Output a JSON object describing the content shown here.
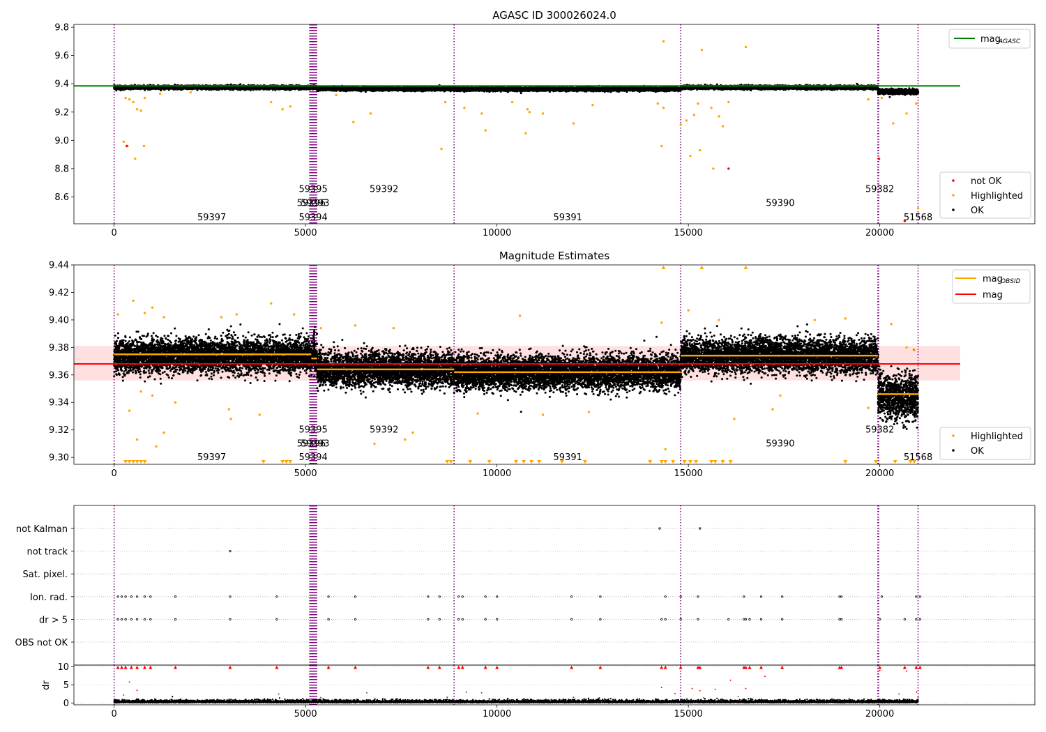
{
  "chart_data": [
    {
      "type": "scatter",
      "title": "AGASC ID 300026024.0",
      "xlim": [
        -1050,
        24050
      ],
      "ylim": [
        8.41,
        9.82
      ],
      "x_ticks": [
        0,
        5000,
        10000,
        15000,
        20000
      ],
      "y_ticks": [
        8.6,
        8.8,
        9.0,
        9.2,
        9.4,
        9.6,
        9.8
      ],
      "y_tick_labels": [
        "8.6",
        "8.8",
        "9.0",
        "9.2",
        "9.4",
        "9.6",
        "9.8"
      ],
      "legend_lines": [
        {
          "label_main": "mag",
          "label_sub": "AGASC",
          "color": "#008000"
        }
      ],
      "legend_points": [
        {
          "label": "not OK",
          "color": "#ff0000"
        },
        {
          "label": "Highlighted",
          "color": "#ffa500"
        },
        {
          "label": "OK",
          "color": "#000000"
        }
      ],
      "hlines": [
        {
          "name": "mag_AGASC",
          "y": 9.385,
          "x_range": [
            -1050,
            22100
          ],
          "color": "#008000"
        }
      ],
      "obsid_labels": [
        {
          "text": "59397",
          "x": 2550,
          "y": 8.46
        },
        {
          "text": "59395",
          "x": 5200,
          "y": 8.66
        },
        {
          "text": "59396",
          "x": 5150,
          "y": 8.56
        },
        {
          "text": "59393",
          "x": 5250,
          "y": 8.56
        },
        {
          "text": "59394",
          "x": 5200,
          "y": 8.46
        },
        {
          "text": "59392",
          "x": 7050,
          "y": 8.66
        },
        {
          "text": "59391",
          "x": 11850,
          "y": 8.46
        },
        {
          "text": "59390",
          "x": 17400,
          "y": 8.56
        },
        {
          "text": "59382",
          "x": 20000,
          "y": 8.66
        },
        {
          "text": "51568",
          "x": 21000,
          "y": 8.46
        }
      ],
      "segments": [
        {
          "x": [
            0,
            5150
          ],
          "center": 9.374,
          "sigma": 0.006
        },
        {
          "x": [
            5150,
            5300
          ],
          "center": 9.374,
          "sigma": 0.007
        },
        {
          "x": [
            5300,
            8880
          ],
          "center": 9.364,
          "sigma": 0.006
        },
        {
          "x": [
            8880,
            14800
          ],
          "center": 9.362,
          "sigma": 0.006
        },
        {
          "x": [
            14800,
            19950
          ],
          "center": 9.374,
          "sigma": 0.006
        },
        {
          "x": [
            19950,
            21000
          ],
          "center": 9.344,
          "sigma": 0.008
        }
      ],
      "outliers_highlighted": [
        [
          300,
          9.3
        ],
        [
          400,
          9.29
        ],
        [
          500,
          9.27
        ],
        [
          600,
          9.22
        ],
        [
          700,
          9.21
        ],
        [
          800,
          9.3
        ],
        [
          250,
          8.99
        ],
        [
          350,
          8.96
        ],
        [
          550,
          8.87
        ],
        [
          780,
          8.96
        ],
        [
          1200,
          9.33
        ],
        [
          2000,
          9.34
        ],
        [
          4100,
          9.27
        ],
        [
          4400,
          9.22
        ],
        [
          4600,
          9.24
        ],
        [
          5800,
          9.32
        ],
        [
          6250,
          9.13
        ],
        [
          6700,
          9.19
        ],
        [
          8550,
          8.94
        ],
        [
          8650,
          9.27
        ],
        [
          9150,
          9.23
        ],
        [
          9600,
          9.19
        ],
        [
          9700,
          9.07
        ],
        [
          10400,
          9.27
        ],
        [
          10800,
          9.22
        ],
        [
          10850,
          9.2
        ],
        [
          10750,
          9.05
        ],
        [
          11200,
          9.19
        ],
        [
          12000,
          9.12
        ],
        [
          12500,
          9.25
        ],
        [
          14200,
          9.26
        ],
        [
          14350,
          9.23
        ],
        [
          14300,
          8.96
        ],
        [
          14350,
          9.7
        ],
        [
          14800,
          9.11
        ],
        [
          14950,
          9.14
        ],
        [
          15050,
          8.89
        ],
        [
          15150,
          9.18
        ],
        [
          15250,
          9.26
        ],
        [
          15300,
          8.93
        ],
        [
          15350,
          9.64
        ],
        [
          15600,
          9.23
        ],
        [
          15650,
          8.8
        ],
        [
          15800,
          9.17
        ],
        [
          15900,
          9.1
        ],
        [
          16050,
          9.27
        ],
        [
          16500,
          9.66
        ],
        [
          19700,
          9.29
        ],
        [
          20050,
          9.3
        ],
        [
          20350,
          9.12
        ],
        [
          20700,
          9.19
        ],
        [
          20950,
          9.26
        ],
        [
          21000,
          8.52
        ]
      ],
      "outliers_not_ok": [
        [
          330,
          8.96
        ],
        [
          16050,
          8.8
        ],
        [
          19980,
          8.87
        ],
        [
          20650,
          8.43
        ]
      ],
      "mag_key": "mag_AGASC"
    },
    {
      "type": "scatter",
      "title": "Magnitude Estimates",
      "xlim": [
        -1050,
        24050
      ],
      "ylim": [
        9.295,
        9.44
      ],
      "x_ticks": [
        0,
        5000,
        10000,
        15000,
        20000
      ],
      "y_ticks": [
        9.3,
        9.32,
        9.34,
        9.36,
        9.38,
        9.4,
        9.42,
        9.44
      ],
      "y_tick_labels": [
        "9.30",
        "9.32",
        "9.34",
        "9.36",
        "9.38",
        "9.40",
        "9.42",
        "9.44"
      ],
      "legend_lines": [
        {
          "label_main": "mag",
          "label_sub": "OBSID",
          "color": "#ffa500"
        },
        {
          "label_main": "mag",
          "label_sub": "",
          "color": "#ff0000"
        }
      ],
      "legend_points": [
        {
          "label": "Highlighted",
          "color": "#ffa500"
        },
        {
          "label": "OK",
          "color": "#000000"
        }
      ],
      "hlines": [
        {
          "name": "mag",
          "y": 9.368,
          "x_range": [
            -1050,
            22100
          ],
          "color": "#ff0000"
        }
      ],
      "band": {
        "y": [
          9.356,
          9.381
        ],
        "x_range": [
          -1050,
          22100
        ],
        "color": "#ffcccc"
      },
      "obsid_mag_segments": [
        {
          "x": [
            0,
            5150
          ],
          "y": 9.375
        },
        {
          "x": [
            5150,
            5300
          ],
          "y": 9.372
        },
        {
          "x": [
            5300,
            8880
          ],
          "y": 9.364
        },
        {
          "x": [
            8880,
            14800
          ],
          "y": 9.362
        },
        {
          "x": [
            14800,
            19950
          ],
          "y": 9.374
        },
        {
          "x": [
            19950,
            21000
          ],
          "y": 9.346
        }
      ],
      "obsid_labels": [
        {
          "text": "59397",
          "x": 2550,
          "y": 9.3005
        },
        {
          "text": "59395",
          "x": 5200,
          "y": 9.3205
        },
        {
          "text": "59396",
          "x": 5150,
          "y": 9.3105
        },
        {
          "text": "59393",
          "x": 5250,
          "y": 9.3105
        },
        {
          "text": "59394",
          "x": 5200,
          "y": 9.3005
        },
        {
          "text": "59392",
          "x": 7050,
          "y": 9.3205
        },
        {
          "text": "59391",
          "x": 11850,
          "y": 9.3005
        },
        {
          "text": "59390",
          "x": 17400,
          "y": 9.3105
        },
        {
          "text": "59382",
          "x": 20000,
          "y": 9.3205
        },
        {
          "text": "51568",
          "x": 21000,
          "y": 9.3005
        }
      ],
      "outliers_highlighted": [
        [
          100,
          9.404
        ],
        [
          500,
          9.414
        ],
        [
          800,
          9.405
        ],
        [
          1000,
          9.409
        ],
        [
          1300,
          9.402
        ],
        [
          2800,
          9.402
        ],
        [
          3200,
          9.404
        ],
        [
          4100,
          9.412
        ],
        [
          4700,
          9.404
        ],
        [
          400,
          9.334
        ],
        [
          700,
          9.348
        ],
        [
          1000,
          9.345
        ],
        [
          1600,
          9.34
        ],
        [
          3000,
          9.335
        ],
        [
          3050,
          9.328
        ],
        [
          3800,
          9.331
        ],
        [
          600,
          9.313
        ],
        [
          1100,
          9.308
        ],
        [
          1300,
          9.318
        ],
        [
          5400,
          9.394
        ],
        [
          6300,
          9.396
        ],
        [
          7300,
          9.394
        ],
        [
          7600,
          9.313
        ],
        [
          7800,
          9.318
        ],
        [
          6800,
          9.31
        ],
        [
          9500,
          9.332
        ],
        [
          10600,
          9.403
        ],
        [
          11200,
          9.331
        ],
        [
          12400,
          9.333
        ],
        [
          14300,
          9.398
        ],
        [
          14400,
          9.306
        ],
        [
          15000,
          9.407
        ],
        [
          15800,
          9.4
        ],
        [
          16200,
          9.328
        ],
        [
          17200,
          9.335
        ],
        [
          17400,
          9.345
        ],
        [
          18300,
          9.4
        ],
        [
          19100,
          9.401
        ],
        [
          19700,
          9.336
        ],
        [
          20300,
          9.397
        ],
        [
          20700,
          9.38
        ],
        [
          20900,
          9.378
        ]
      ],
      "clipped_low_x": [
        300,
        400,
        500,
        600,
        700,
        800,
        3900,
        4400,
        4500,
        4600,
        8700,
        8800,
        9300,
        9800,
        10500,
        10700,
        10900,
        11100,
        11700,
        12300,
        14000,
        14300,
        14400,
        14600,
        14900,
        15050,
        15200,
        15600,
        15700,
        15900,
        16100,
        19100,
        19900,
        20400,
        20800,
        20900
      ],
      "clipped_high_x": [
        14350,
        15350,
        16500
      ],
      "mag_key": "mag"
    },
    {
      "type": "scatter",
      "title": "",
      "xlim": [
        -1050,
        24050
      ],
      "flag_labels": [
        "not Kalman",
        "not track",
        "Sat. pixel.",
        "Ion. rad.",
        "dr > 5",
        "OBS not OK"
      ],
      "flag_points": {
        "not Kalman": [
          14250,
          15300
        ],
        "not track": [
          3030
        ],
        "Sat. pixel.": [],
        "Ion. rad.": [
          100,
          200,
          300,
          450,
          600,
          800,
          950,
          1600,
          3030,
          4250,
          5600,
          6300,
          8200,
          8500,
          9000,
          9100,
          9700,
          10000,
          11950,
          12700,
          14400,
          14800,
          15250,
          16450,
          16900,
          17450,
          18950,
          19000,
          20050,
          20950,
          21050
        ],
        "dr > 5": [
          100,
          200,
          300,
          450,
          600,
          800,
          950,
          1600,
          3030,
          4250,
          5600,
          6300,
          8200,
          8500,
          9000,
          9100,
          9700,
          10000,
          11950,
          12700,
          14300,
          14400,
          14800,
          15250,
          16050,
          16450,
          16500,
          16600,
          16900,
          17450,
          18950,
          19000,
          20000,
          20650,
          20950,
          21050
        ],
        "OBS not OK": []
      },
      "dr_panel": {
        "ylabel": "dr",
        "y_ticks": [
          0,
          5,
          10
        ],
        "y_tick_labels": [
          "0",
          "5",
          "10"
        ],
        "ylim": [
          -0.5,
          10.5
        ],
        "clipped_x": [
          100,
          200,
          300,
          450,
          600,
          800,
          950,
          1600,
          3030,
          4250,
          5600,
          6300,
          8200,
          8500,
          9000,
          9100,
          9700,
          10000,
          11950,
          12700,
          14300,
          14400,
          14800,
          15250,
          15300,
          16450,
          16500,
          16600,
          16900,
          17450,
          18950,
          19000,
          20000,
          20650,
          20950,
          21050
        ],
        "red_points": [
          [
            400,
            5.8
          ],
          [
            600,
            3.5
          ],
          [
            14300,
            4.3
          ],
          [
            15100,
            4.0
          ],
          [
            15300,
            3.4
          ],
          [
            15700,
            3.8
          ],
          [
            16100,
            6.3
          ],
          [
            16500,
            4.0
          ],
          [
            17000,
            7.4
          ],
          [
            20000,
            9.0
          ],
          [
            20700,
            8.8
          ],
          [
            20960,
            3.0
          ]
        ],
        "gray_points": [
          [
            250,
            2.2
          ],
          [
            4300,
            2.5
          ],
          [
            5400,
            1.5
          ],
          [
            6600,
            2.8
          ],
          [
            8700,
            1.6
          ],
          [
            9200,
            3.0
          ],
          [
            9600,
            2.8
          ],
          [
            12000,
            1.6
          ],
          [
            14650,
            2.6
          ],
          [
            15400,
            1.4
          ],
          [
            16300,
            1.8
          ],
          [
            19200,
            1.3
          ],
          [
            20500,
            2.5
          ],
          [
            21000,
            1.6
          ]
        ]
      },
      "x_ticks": [
        0,
        5000,
        10000,
        15000,
        20000
      ]
    }
  ],
  "obsid_boundaries": [
    0,
    5110,
    5130,
    5150,
    5170,
    5190,
    5210,
    5230,
    5250,
    5270,
    5290,
    8880,
    14800,
    19950,
    19970,
    21000
  ],
  "colors": {
    "ok": "#000000",
    "highlighted": "#ffa500",
    "not_ok": "#ff0000",
    "boundary": "#800080",
    "grid": "#b0b0b0"
  }
}
